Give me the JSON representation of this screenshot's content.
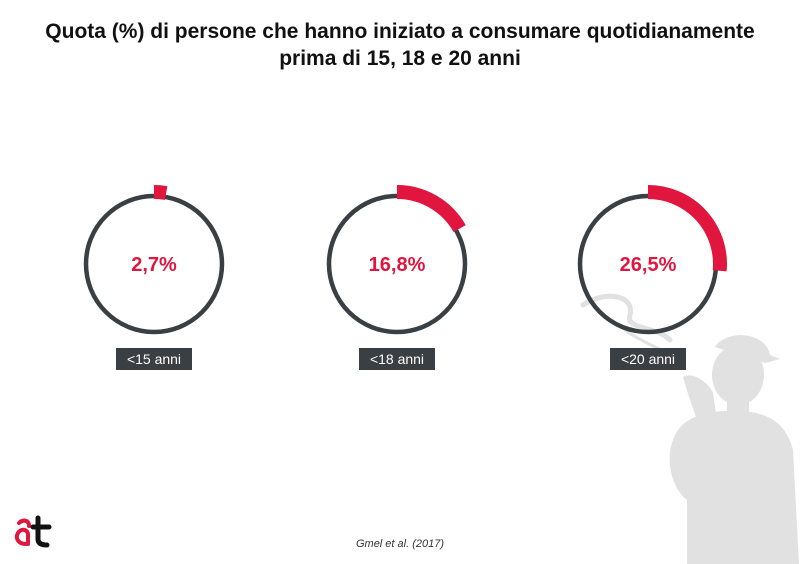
{
  "title_line1": "Quota (%) di persone che hanno iniziato a consumare quotidianamente",
  "title_line2": "prima di 15, 18 e 20 anni",
  "source": "Gmel et al. (2017)",
  "colors": {
    "accent": "#e0163f",
    "ring": "#3a3f44",
    "badge": "#3a3f44",
    "silhouette": "#e1e1e1"
  },
  "chart_data": {
    "type": "pie",
    "title": "Quota (%) di persone che hanno iniziato a consumare quotidianamente prima di 15, 18 e 20 anni",
    "categories": [
      "<15 anni",
      "<18 anni",
      "<20 anni"
    ],
    "values": [
      2.7,
      16.8,
      26.5
    ],
    "value_labels": [
      "2,7%",
      "16,8%",
      "26,5%"
    ],
    "unit": "%"
  }
}
